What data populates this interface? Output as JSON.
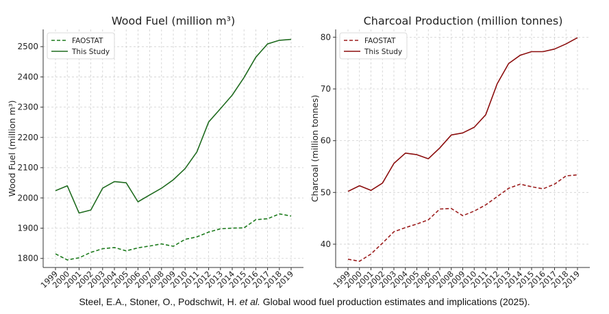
{
  "caption": {
    "prefix": "Steel, E.A., Stoner, O., Podschwit, H. ",
    "etal": "et al.",
    "suffix": " Global wood fuel production estimates and implications (2025)."
  },
  "chart_data": [
    {
      "type": "line",
      "title": "Wood Fuel (million m³)",
      "xlabel": "",
      "ylabel": "Wood Fuel (million m³)",
      "categories": [
        "1999",
        "2000",
        "2001",
        "2002",
        "2003",
        "2004",
        "2005",
        "2006",
        "2007",
        "2008",
        "2009",
        "2010",
        "2011",
        "2012",
        "2013",
        "2014",
        "2015",
        "2016",
        "2017",
        "2018",
        "2019"
      ],
      "yticks": [
        1800,
        1900,
        2000,
        2100,
        2200,
        2300,
        2400,
        2500
      ],
      "ylim": [
        1770,
        2557
      ],
      "legend": "top-left",
      "grid": true,
      "series": [
        {
          "name": "FAOSTAT",
          "style": "dashed",
          "color": "#1b7a1b",
          "values": [
            1815,
            1795,
            1802,
            1820,
            1832,
            1836,
            1825,
            1835,
            1841,
            1848,
            1840,
            1863,
            1871,
            1887,
            1898,
            1900,
            1901,
            1928,
            1931,
            1947,
            1940
          ]
        },
        {
          "name": "This Study",
          "style": "solid",
          "color": "#1f6b1f",
          "values": [
            2024,
            2040,
            1950,
            1960,
            2032,
            2054,
            2050,
            1987,
            2010,
            2032,
            2060,
            2097,
            2152,
            2251,
            2295,
            2340,
            2398,
            2465,
            2509,
            2521,
            2524
          ]
        }
      ]
    },
    {
      "type": "line",
      "title": "Charcoal Production (million tonnes)",
      "xlabel": "",
      "ylabel": "Charcoal (million tonnes)",
      "categories": [
        "1999",
        "2000",
        "2001",
        "2002",
        "2003",
        "2004",
        "2005",
        "2006",
        "2007",
        "2008",
        "2009",
        "2010",
        "2011",
        "2012",
        "2013",
        "2014",
        "2015",
        "2016",
        "2017",
        "2018",
        "2019"
      ],
      "yticks": [
        40,
        50,
        60,
        70,
        80
      ],
      "ylim": [
        35.5,
        81.5
      ],
      "legend": "top-left",
      "grid": true,
      "series": [
        {
          "name": "FAOSTAT",
          "style": "dashed",
          "color": "#9b1c1c",
          "values": [
            37.1,
            36.7,
            38.1,
            40.2,
            42.4,
            43.2,
            43.9,
            44.7,
            46.8,
            46.9,
            45.5,
            46.4,
            47.6,
            49.2,
            50.8,
            51.6,
            51.1,
            50.7,
            51.6,
            53.2,
            53.4
          ]
        },
        {
          "name": "This Study",
          "style": "solid",
          "color": "#8b0d0d",
          "values": [
            50.2,
            51.3,
            50.4,
            51.8,
            55.6,
            57.6,
            57.3,
            56.5,
            58.6,
            61.1,
            61.5,
            62.6,
            65.0,
            71.0,
            74.9,
            76.5,
            77.2,
            77.2,
            77.7,
            78.7,
            79.9
          ]
        }
      ]
    }
  ]
}
